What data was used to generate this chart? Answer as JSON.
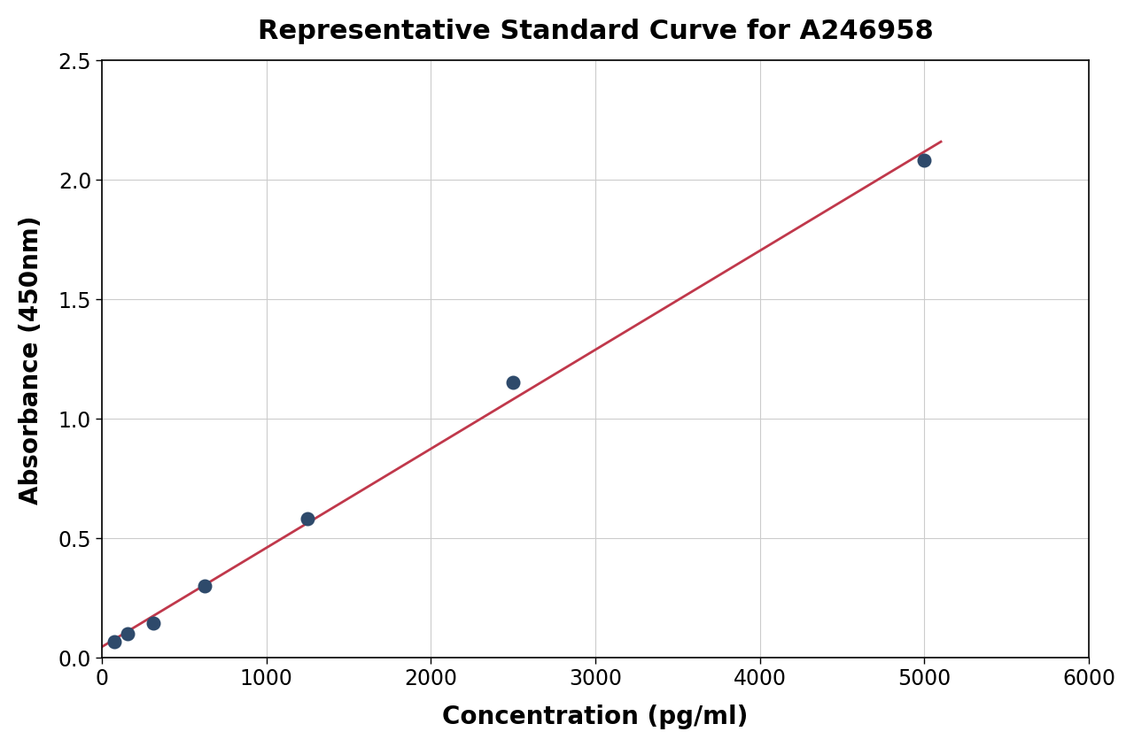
{
  "title": "Representative Standard Curve for A246958",
  "xlabel": "Concentration (pg/ml)",
  "ylabel": "Absorbance (450nm)",
  "x_data": [
    78,
    156,
    313,
    625,
    1250,
    2500,
    5000
  ],
  "y_data": [
    0.065,
    0.1,
    0.145,
    0.3,
    0.58,
    1.15,
    2.08
  ],
  "xlim": [
    0,
    6000
  ],
  "ylim": [
    0.0,
    2.5
  ],
  "xticks": [
    0,
    1000,
    2000,
    3000,
    4000,
    5000,
    6000
  ],
  "yticks": [
    0.0,
    0.5,
    1.0,
    1.5,
    2.0,
    2.5
  ],
  "line_x_start": 0,
  "line_x_end": 5100,
  "dot_color": "#2e4a6b",
  "line_color": "#c0384b",
  "background_color": "#ffffff",
  "plot_bg_color": "#ffffff",
  "grid_color": "#cccccc",
  "title_fontsize": 22,
  "label_fontsize": 20,
  "tick_fontsize": 17,
  "dot_size": 100,
  "line_width": 2.0
}
